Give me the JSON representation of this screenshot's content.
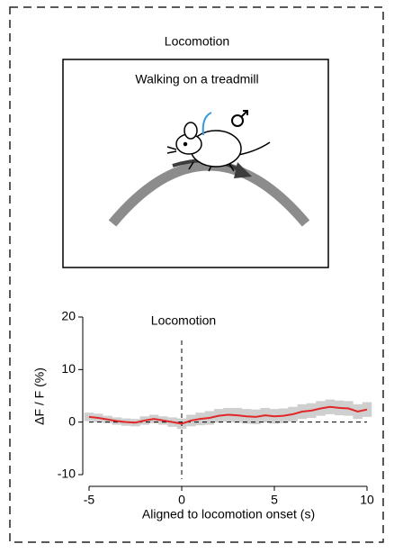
{
  "diagram": {
    "title": "Locomotion",
    "caption": "Walking on a treadmill"
  },
  "chart_data": {
    "type": "line",
    "title": "Locomotion",
    "x_label": "Aligned to locomotion onset (s)",
    "y_label": "ΔF / F (%)",
    "x": [
      -5,
      -4.5,
      -4,
      -3.5,
      -3,
      -2.5,
      -2,
      -1.5,
      -1,
      -0.5,
      0,
      0.5,
      1,
      1.5,
      2,
      2.5,
      3,
      3.5,
      4,
      4.5,
      5,
      5.5,
      6,
      6.5,
      7,
      7.5,
      8,
      8.5,
      9,
      9.5,
      10
    ],
    "series": [
      {
        "color": "#e0282a",
        "error_color": "#cfcfcf",
        "values": [
          1,
          0.8,
          0.5,
          0.2,
          0,
          -0.1,
          0.3,
          0.6,
          0.3,
          0,
          -0.3,
          0.3,
          0.6,
          0.8,
          1.2,
          1.4,
          1.3,
          1.1,
          1,
          1.3,
          1.1,
          1.2,
          1.5,
          2,
          2.2,
          2.6,
          2.9,
          2.7,
          2.6,
          2,
          2.4
        ],
        "error": [
          0.8,
          0.8,
          0.7,
          0.7,
          0.7,
          0.7,
          0.8,
          0.8,
          0.8,
          0.9,
          1,
          1.1,
          1.2,
          1.3,
          1.3,
          1.3,
          1.4,
          1.4,
          1.4,
          1.4,
          1.4,
          1.4,
          1.4,
          1.4,
          1.4,
          1.4,
          1.4,
          1.4,
          1.4,
          1.4,
          1.4
        ]
      }
    ],
    "xlim": [
      -5,
      10
    ],
    "ylim": [
      -10,
      20
    ],
    "xticks": [
      -5,
      0,
      5,
      10
    ],
    "yticks": [
      -10,
      0,
      10,
      20
    ]
  }
}
